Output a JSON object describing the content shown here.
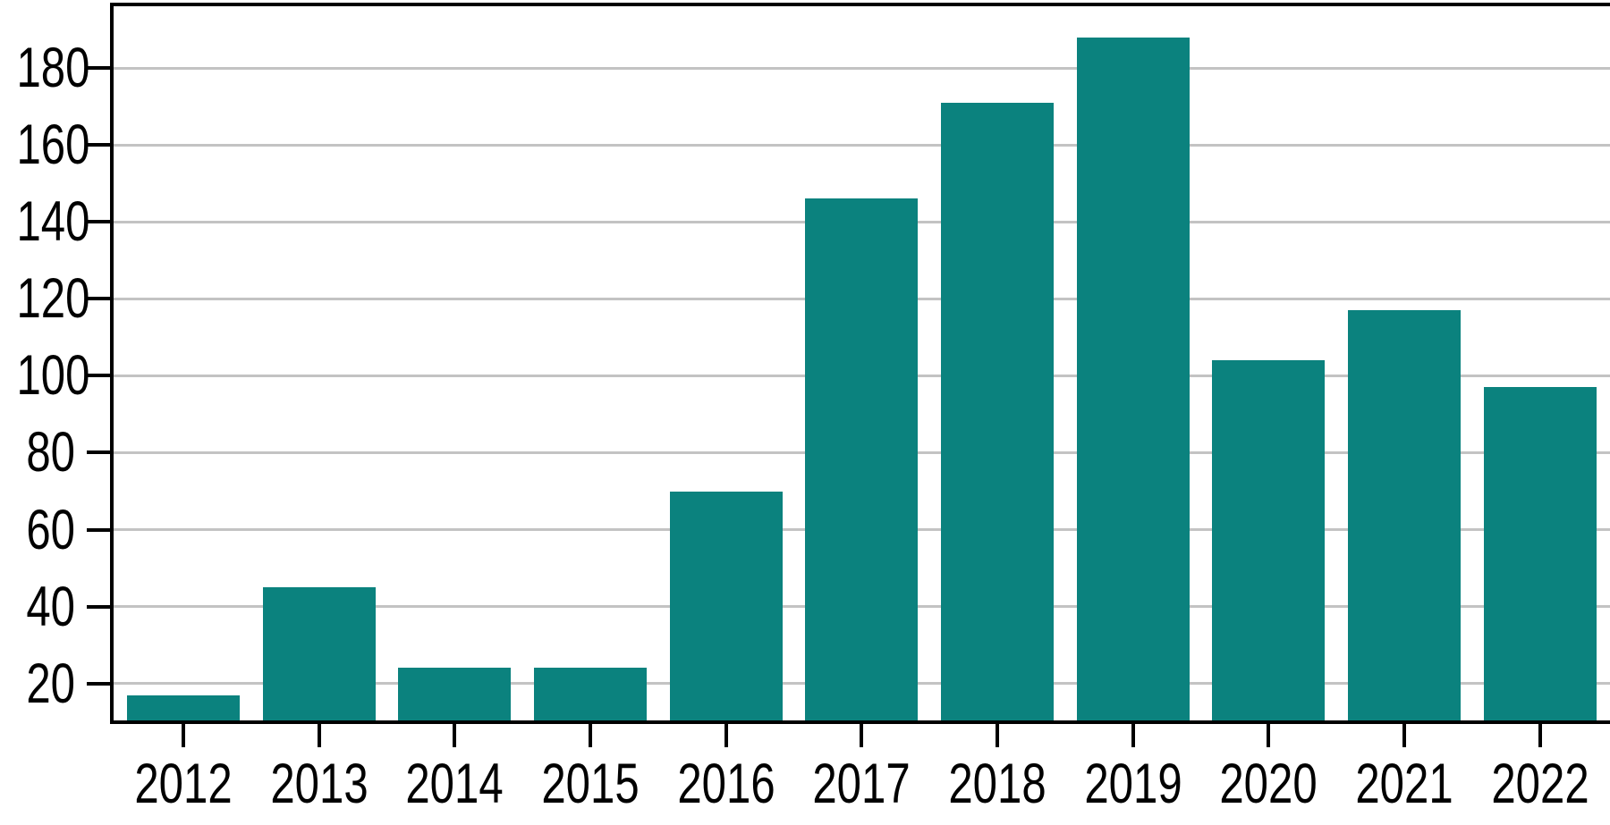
{
  "chart_data": {
    "type": "bar",
    "title": "",
    "xlabel": "",
    "ylabel": "",
    "categories": [
      "2012",
      "2013",
      "2014",
      "2015",
      "2016",
      "2017",
      "2018",
      "2019",
      "2020",
      "2021",
      "2022"
    ],
    "values": [
      17,
      45,
      24,
      24,
      70,
      146,
      171,
      188,
      104,
      117,
      97
    ],
    "yticks": [
      20,
      40,
      60,
      80,
      100,
      120,
      140,
      160,
      180
    ],
    "ylim": [
      10.4,
      197
    ],
    "grid": "horizontal",
    "legend": "none",
    "colors": {
      "bar": "#0b827e",
      "gridline": "#c3c3c3",
      "axis": "#000000",
      "text": "#000000",
      "background": "#ffffff"
    }
  }
}
